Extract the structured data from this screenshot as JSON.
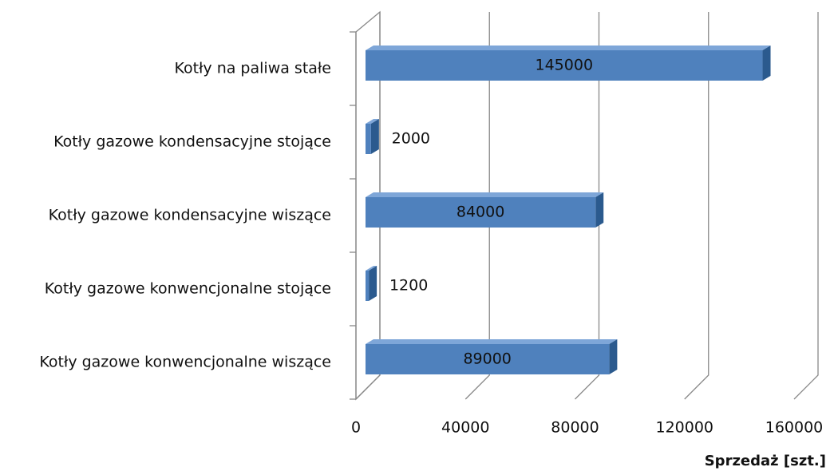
{
  "chart_data": {
    "type": "bar",
    "orientation": "horizontal",
    "categories": [
      "Kotły na paliwa stałe",
      "Kotły gazowe kondensacyjne stojące",
      "Kotły gazowe kondensacyjne wiszące",
      "Kotły gazowe konwencjonalne stojące",
      "Kotły gazowe konwencjonalne wiszące"
    ],
    "values": [
      145000,
      2000,
      84000,
      1200,
      89000
    ],
    "color": "#4f81bd",
    "xlim": [
      0,
      160000
    ],
    "xticks": [
      0,
      40000,
      80000,
      120000,
      160000
    ],
    "x_label": "Sprzedaż [szt.]",
    "grid": true
  }
}
